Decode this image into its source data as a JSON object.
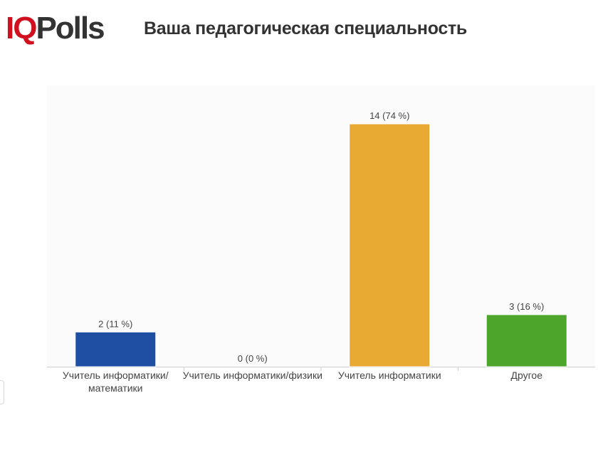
{
  "logo": {
    "iq": "IQ",
    "polls": "Polls"
  },
  "chart_data": {
    "type": "bar",
    "title": "Ваша педагогическая специальность",
    "categories": [
      [
        "Учитель информатики/",
        "математики"
      ],
      [
        "Учитель информатики/физики"
      ],
      [
        "Учитель информатики"
      ],
      [
        "Другое"
      ]
    ],
    "values": [
      2,
      0,
      14,
      3
    ],
    "data_labels": [
      "2 (11 %)",
      "0 (0 %)",
      "14 (74 %)",
      "3 (16 %)"
    ],
    "colors": [
      "#1f4fa3",
      "#cccccc",
      "#e8aa33",
      "#4da52b"
    ],
    "ylim": [
      0,
      14
    ],
    "grid": false,
    "legend": "none"
  }
}
